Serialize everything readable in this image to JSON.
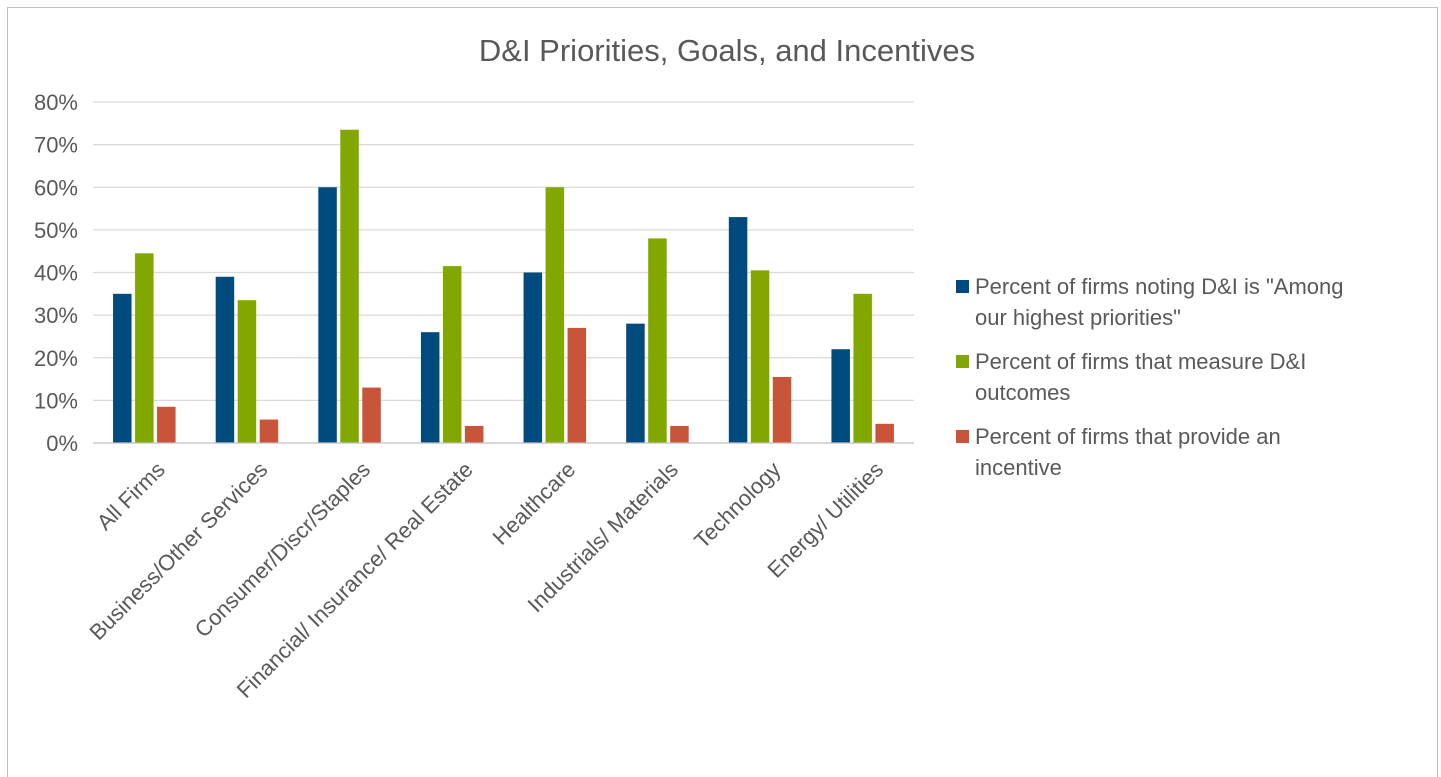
{
  "chart_data": {
    "type": "bar",
    "title": "D&I Priorities, Goals, and Incentives",
    "xlabel": "",
    "ylabel": "",
    "ylim": [
      0,
      0.8
    ],
    "yticks": [
      {
        "value": 0.0,
        "label": "0%"
      },
      {
        "value": 0.1,
        "label": "10%"
      },
      {
        "value": 0.2,
        "label": "20%"
      },
      {
        "value": 0.3,
        "label": "30%"
      },
      {
        "value": 0.4,
        "label": "40%"
      },
      {
        "value": 0.5,
        "label": "50%"
      },
      {
        "value": 0.6,
        "label": "60%"
      },
      {
        "value": 0.7,
        "label": "70%"
      },
      {
        "value": 0.8,
        "label": "80%"
      }
    ],
    "grid": true,
    "legend_position": "right",
    "categories": [
      "All Firms",
      "Business/Other Services",
      "Consumer/Discr/Staples",
      "Financial/ Insurance/ Real Estate",
      "Healthcare",
      "Industrials/ Materials",
      "Technology",
      "Energy/ Utilities"
    ],
    "series": [
      {
        "name": "Percent of firms noting D&I is \"Among our highest priorities\"",
        "legend_lines": [
          "Percent of firms noting D&I is \"Among",
          "our highest priorities\""
        ],
        "color": "#004b7d",
        "values": [
          0.35,
          0.39,
          0.6,
          0.26,
          0.4,
          0.28,
          0.53,
          0.22
        ]
      },
      {
        "name": "Percent of firms that measure D&I outcomes",
        "legend_lines": [
          "Percent of firms that measure D&I",
          "outcomes"
        ],
        "color": "#82a800",
        "values": [
          0.445,
          0.335,
          0.735,
          0.415,
          0.6,
          0.48,
          0.405,
          0.35
        ]
      },
      {
        "name": "Percent of firms that provide an incentive",
        "legend_lines": [
          "Percent of firms that provide an",
          "incentive"
        ],
        "color": "#c8553a",
        "values": [
          0.085,
          0.055,
          0.13,
          0.04,
          0.27,
          0.04,
          0.155,
          0.045
        ]
      }
    ]
  }
}
